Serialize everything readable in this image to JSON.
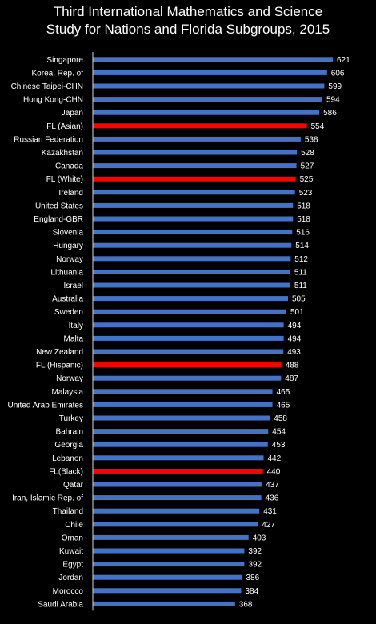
{
  "chart_data": {
    "type": "bar",
    "orientation": "horizontal",
    "title_lines": [
      "Third International Mathematics and Science",
      "Study for Nations and Florida Subgroups, 2015"
    ],
    "categories": [
      "Singapore",
      "Korea, Rep. of",
      "Chinese Taipei-CHN",
      "Hong Kong-CHN",
      "Japan",
      "FL (Asian)",
      "Russian Federation",
      "Kazakhstan",
      "Canada",
      "FL (White)",
      "Ireland",
      "United States",
      "England-GBR",
      "Slovenia",
      "Hungary",
      "Norway",
      "Lithuania",
      "Israel",
      "Australia",
      "Sweden",
      "Italy",
      "Malta",
      "New Zealand",
      "FL (Hispanic)",
      "Norway",
      "Malaysia",
      "United Arab Emirates",
      "Turkey",
      "Bahrain",
      "Georgia",
      "Lebanon",
      "FL(Black)",
      "Qatar",
      "Iran, Islamic Rep. of",
      "Thailand",
      "Chile",
      "Oman",
      "Kuwait",
      "Egypt",
      "Jordan",
      "Morocco",
      "Saudi Arabia"
    ],
    "values": [
      621,
      606,
      599,
      594,
      586,
      554,
      538,
      528,
      527,
      525,
      523,
      518,
      518,
      516,
      514,
      512,
      511,
      511,
      505,
      501,
      494,
      494,
      493,
      488,
      487,
      465,
      465,
      458,
      454,
      453,
      442,
      440,
      437,
      436,
      431,
      427,
      403,
      392,
      392,
      386,
      384,
      368
    ],
    "highlighted": [
      false,
      false,
      false,
      false,
      false,
      true,
      false,
      false,
      false,
      true,
      false,
      false,
      false,
      false,
      false,
      false,
      false,
      false,
      false,
      false,
      false,
      false,
      false,
      true,
      false,
      false,
      false,
      false,
      false,
      false,
      false,
      true,
      false,
      false,
      false,
      false,
      false,
      false,
      false,
      false,
      false,
      false
    ],
    "xlim": [
      0,
      621
    ],
    "grid": false,
    "legend": "none",
    "colors": {
      "bar": "#4472C4",
      "highlight": "#FF0000",
      "background": "#000000",
      "text": "#FFFFFF",
      "axis": "#D9D9D9"
    }
  }
}
